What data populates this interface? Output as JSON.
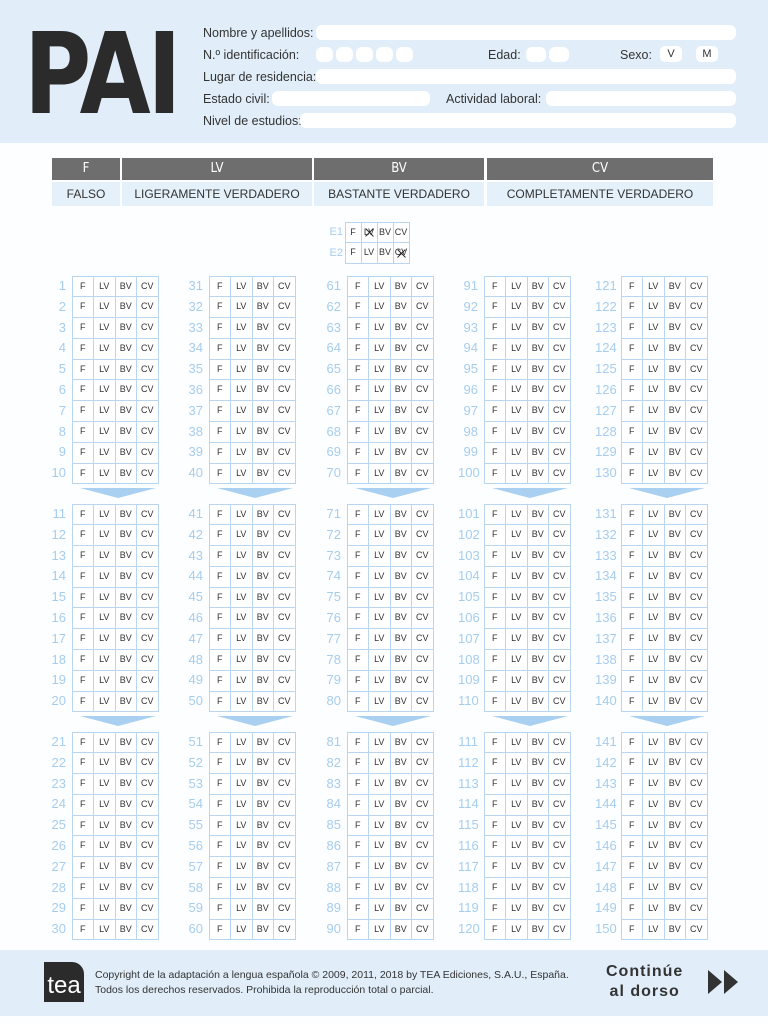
{
  "header": {
    "logo": "PAI",
    "fields": {
      "name": "Nombre y apellidos:",
      "id": "N.º identificación:",
      "age": "Edad:",
      "sex": "Sexo:",
      "sex_options": [
        "V",
        "M"
      ],
      "residence": "Lugar de residencia:",
      "civil": "Estado civil:",
      "work": "Actividad laboral:",
      "studies": "Nivel de estudios:"
    }
  },
  "legend": [
    {
      "code": "F",
      "label": "FALSO"
    },
    {
      "code": "LV",
      "label": "LIGERAMENTE VERDADERO"
    },
    {
      "code": "BV",
      "label": "BASTANTE VERDADERO"
    },
    {
      "code": "CV",
      "label": "COMPLETAMENTE VERDADERO"
    }
  ],
  "options": [
    "F",
    "LV",
    "BV",
    "CV"
  ],
  "examples": [
    {
      "label": "E1",
      "marked": "LV"
    },
    {
      "label": "E2",
      "marked": "CV"
    }
  ],
  "blocks": [
    [
      1,
      2,
      3,
      4,
      5,
      6,
      7,
      8,
      9,
      10
    ],
    [
      11,
      12,
      13,
      14,
      15,
      16,
      17,
      18,
      19,
      20
    ],
    [
      21,
      22,
      23,
      24,
      25,
      26,
      27,
      28,
      29,
      30
    ],
    [
      31,
      32,
      33,
      34,
      35,
      36,
      37,
      38,
      39,
      40
    ],
    [
      41,
      42,
      43,
      44,
      45,
      46,
      47,
      48,
      49,
      50
    ],
    [
      51,
      52,
      53,
      54,
      55,
      56,
      57,
      58,
      59,
      60
    ],
    [
      61,
      62,
      63,
      64,
      65,
      66,
      67,
      68,
      69,
      70
    ],
    [
      71,
      72,
      73,
      74,
      75,
      76,
      77,
      78,
      79,
      80
    ],
    [
      81,
      82,
      83,
      84,
      85,
      86,
      87,
      88,
      89,
      90
    ],
    [
      91,
      92,
      93,
      94,
      95,
      96,
      97,
      98,
      99,
      100
    ],
    [
      101,
      102,
      103,
      104,
      105,
      106,
      107,
      108,
      109,
      110
    ],
    [
      111,
      112,
      113,
      114,
      115,
      116,
      117,
      118,
      119,
      120
    ],
    [
      121,
      122,
      123,
      124,
      125,
      126,
      127,
      128,
      129,
      130
    ],
    [
      131,
      132,
      133,
      134,
      135,
      136,
      137,
      138,
      139,
      140
    ],
    [
      141,
      142,
      143,
      144,
      145,
      146,
      147,
      148,
      149,
      150
    ]
  ],
  "footer": {
    "logo": "tea",
    "copyright_1": "Copyright de la adaptación a lengua española © 2009, 2011, 2018 by TEA Ediciones, S.A.U., España.",
    "copyright_2": "Todos los derechos reservados. Prohibida la reproducción total o parcial.",
    "continue_1": "Continúe",
    "continue_2": "al dorso"
  }
}
